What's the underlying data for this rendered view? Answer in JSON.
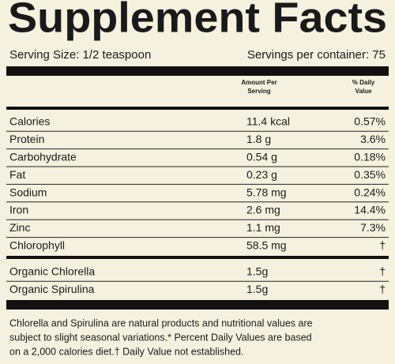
{
  "header": {
    "title": "Supplement Facts",
    "serving_size": "Serving Size: 1/2 teaspoon",
    "servings_per_container": "Servings per container: 75"
  },
  "table": {
    "columns": [
      "Amount Per",
      "Serving",
      "% Daily",
      "Value"
    ],
    "groups": [
      [
        [
          "Calories",
          "11.4 kcal",
          "0.57%"
        ],
        [
          "Protein",
          "1.8 g",
          "3.6%"
        ],
        [
          "Carbohydrate",
          "0.54 g",
          "0.18%"
        ],
        [
          "Fat",
          "0.23 g",
          "0.35%"
        ],
        [
          "Sodium",
          "5.78 mg",
          "0.24%"
        ],
        [
          "Iron",
          "2.6 mg",
          "14.4%"
        ],
        [
          "Zinc",
          "1.1 mg",
          "7.3%"
        ],
        [
          "Chlorophyll",
          "58.5 mg",
          "†"
        ]
      ],
      [
        [
          "Organic Chlorella",
          "1.5g",
          "†"
        ],
        [
          "Organic Spirulina",
          "1.5g",
          "†"
        ]
      ]
    ]
  },
  "footnote": [
    "Chlorella and Spirulina are natural products and nutritional values are",
    "subject to slight seasonal variations.* Percent Daily Values are based",
    "on a 2,000 calories diet.† Daily Value not established."
  ]
}
